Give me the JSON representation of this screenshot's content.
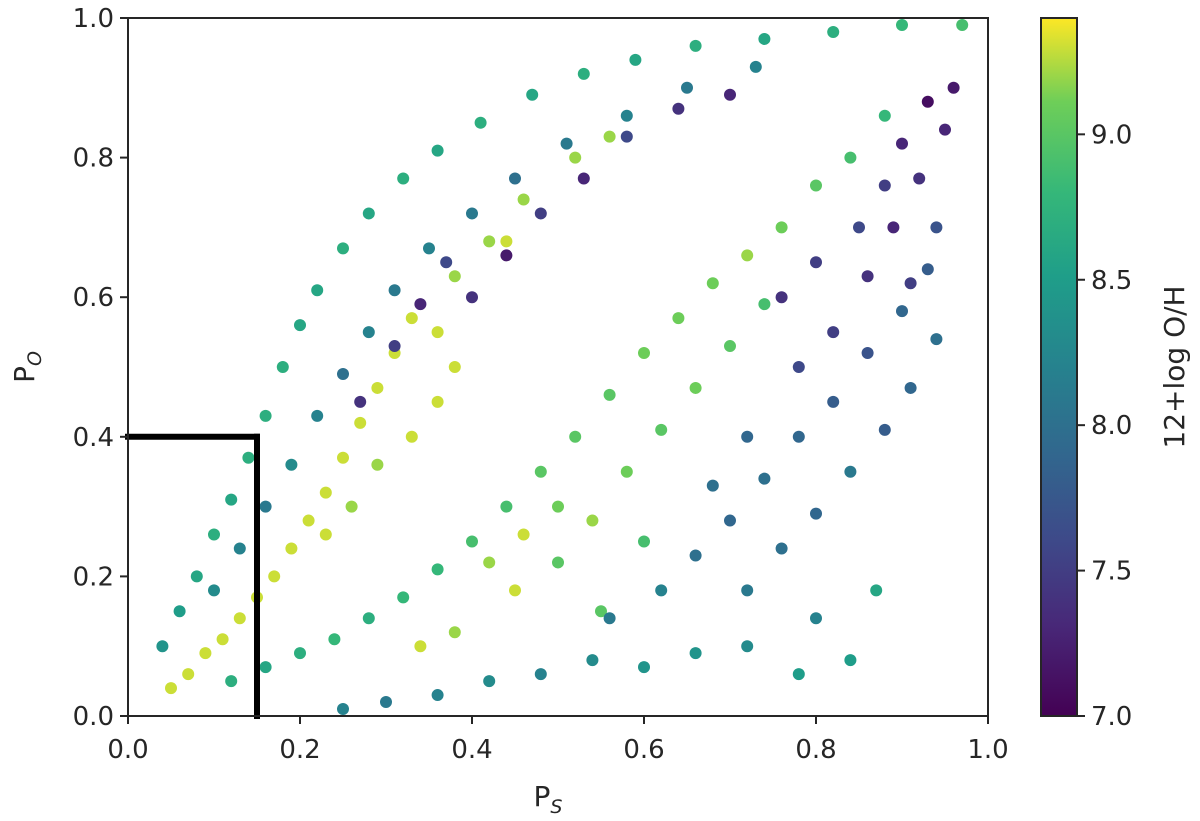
{
  "chart_data": {
    "type": "scatter",
    "title": "",
    "xlabel": "P",
    "xlabel_sub": "S",
    "ylabel": "P",
    "ylabel_sub": "O",
    "xlim": [
      0.0,
      1.0
    ],
    "ylim": [
      0.0,
      1.0
    ],
    "xticks": [
      "0.0",
      "0.2",
      "0.4",
      "0.6",
      "0.8",
      "1.0"
    ],
    "yticks": [
      "0.0",
      "0.2",
      "0.4",
      "0.6",
      "0.8",
      "1.0"
    ],
    "grid": false,
    "colorbar": {
      "label": "12+log O/H",
      "range": [
        7.0,
        9.4
      ],
      "ticks": [
        "7.0",
        "7.5",
        "8.0",
        "8.5",
        "9.0"
      ],
      "colormap": "viridis"
    },
    "threshold_lines": [
      {
        "orientation": "horizontal",
        "y": 0.4,
        "x_from": 0.0,
        "x_to": 0.15,
        "color": "#000000"
      },
      {
        "orientation": "vertical",
        "x": 0.15,
        "y_from": 0.0,
        "y_to": 0.4,
        "color": "#000000"
      }
    ],
    "points": [
      {
        "x": 0.05,
        "y": 0.04,
        "c": 9.3
      },
      {
        "x": 0.07,
        "y": 0.06,
        "c": 9.3
      },
      {
        "x": 0.09,
        "y": 0.09,
        "c": 9.3
      },
      {
        "x": 0.11,
        "y": 0.11,
        "c": 9.3
      },
      {
        "x": 0.13,
        "y": 0.14,
        "c": 9.3
      },
      {
        "x": 0.15,
        "y": 0.17,
        "c": 9.3
      },
      {
        "x": 0.17,
        "y": 0.2,
        "c": 9.3
      },
      {
        "x": 0.19,
        "y": 0.24,
        "c": 9.3
      },
      {
        "x": 0.21,
        "y": 0.28,
        "c": 9.3
      },
      {
        "x": 0.23,
        "y": 0.32,
        "c": 9.3
      },
      {
        "x": 0.25,
        "y": 0.37,
        "c": 9.3
      },
      {
        "x": 0.27,
        "y": 0.42,
        "c": 9.3
      },
      {
        "x": 0.29,
        "y": 0.47,
        "c": 9.3
      },
      {
        "x": 0.31,
        "y": 0.52,
        "c": 9.3
      },
      {
        "x": 0.33,
        "y": 0.57,
        "c": 9.3
      },
      {
        "x": 0.38,
        "y": 0.63,
        "c": 9.2
      },
      {
        "x": 0.42,
        "y": 0.68,
        "c": 9.2
      },
      {
        "x": 0.46,
        "y": 0.74,
        "c": 9.2
      },
      {
        "x": 0.52,
        "y": 0.8,
        "c": 9.2
      },
      {
        "x": 0.56,
        "y": 0.83,
        "c": 9.2
      },
      {
        "x": 0.04,
        "y": 0.1,
        "c": 8.4
      },
      {
        "x": 0.06,
        "y": 0.15,
        "c": 8.5
      },
      {
        "x": 0.08,
        "y": 0.2,
        "c": 8.6
      },
      {
        "x": 0.1,
        "y": 0.26,
        "c": 8.7
      },
      {
        "x": 0.12,
        "y": 0.31,
        "c": 8.6
      },
      {
        "x": 0.14,
        "y": 0.37,
        "c": 8.7
      },
      {
        "x": 0.16,
        "y": 0.43,
        "c": 8.7
      },
      {
        "x": 0.18,
        "y": 0.5,
        "c": 8.7
      },
      {
        "x": 0.2,
        "y": 0.56,
        "c": 8.6
      },
      {
        "x": 0.22,
        "y": 0.61,
        "c": 8.6
      },
      {
        "x": 0.25,
        "y": 0.67,
        "c": 8.7
      },
      {
        "x": 0.28,
        "y": 0.72,
        "c": 8.6
      },
      {
        "x": 0.32,
        "y": 0.77,
        "c": 8.7
      },
      {
        "x": 0.36,
        "y": 0.81,
        "c": 8.6
      },
      {
        "x": 0.41,
        "y": 0.85,
        "c": 8.7
      },
      {
        "x": 0.47,
        "y": 0.89,
        "c": 8.6
      },
      {
        "x": 0.53,
        "y": 0.92,
        "c": 8.7
      },
      {
        "x": 0.59,
        "y": 0.94,
        "c": 8.6
      },
      {
        "x": 0.66,
        "y": 0.96,
        "c": 8.7
      },
      {
        "x": 0.74,
        "y": 0.97,
        "c": 8.6
      },
      {
        "x": 0.82,
        "y": 0.98,
        "c": 8.7
      },
      {
        "x": 0.9,
        "y": 0.99,
        "c": 8.8
      },
      {
        "x": 0.97,
        "y": 0.99,
        "c": 8.9
      },
      {
        "x": 0.1,
        "y": 0.18,
        "c": 8.3
      },
      {
        "x": 0.13,
        "y": 0.24,
        "c": 8.2
      },
      {
        "x": 0.16,
        "y": 0.3,
        "c": 8.1
      },
      {
        "x": 0.19,
        "y": 0.36,
        "c": 8.3
      },
      {
        "x": 0.22,
        "y": 0.43,
        "c": 8.2
      },
      {
        "x": 0.25,
        "y": 0.49,
        "c": 8.0
      },
      {
        "x": 0.28,
        "y": 0.55,
        "c": 8.2
      },
      {
        "x": 0.31,
        "y": 0.61,
        "c": 8.1
      },
      {
        "x": 0.35,
        "y": 0.67,
        "c": 8.2
      },
      {
        "x": 0.4,
        "y": 0.72,
        "c": 8.1
      },
      {
        "x": 0.45,
        "y": 0.77,
        "c": 8.0
      },
      {
        "x": 0.51,
        "y": 0.82,
        "c": 8.1
      },
      {
        "x": 0.58,
        "y": 0.86,
        "c": 8.2
      },
      {
        "x": 0.65,
        "y": 0.9,
        "c": 8.1
      },
      {
        "x": 0.73,
        "y": 0.93,
        "c": 8.2
      },
      {
        "x": 0.27,
        "y": 0.45,
        "c": 7.4
      },
      {
        "x": 0.31,
        "y": 0.53,
        "c": 7.5
      },
      {
        "x": 0.34,
        "y": 0.59,
        "c": 7.3
      },
      {
        "x": 0.37,
        "y": 0.65,
        "c": 7.6
      },
      {
        "x": 0.4,
        "y": 0.6,
        "c": 7.4
      },
      {
        "x": 0.44,
        "y": 0.66,
        "c": 7.2
      },
      {
        "x": 0.48,
        "y": 0.72,
        "c": 7.5
      },
      {
        "x": 0.53,
        "y": 0.77,
        "c": 7.3
      },
      {
        "x": 0.58,
        "y": 0.83,
        "c": 7.6
      },
      {
        "x": 0.64,
        "y": 0.87,
        "c": 7.4
      },
      {
        "x": 0.7,
        "y": 0.89,
        "c": 7.3
      },
      {
        "x": 0.36,
        "y": 0.45,
        "c": 9.3
      },
      {
        "x": 0.38,
        "y": 0.5,
        "c": 9.3
      },
      {
        "x": 0.33,
        "y": 0.4,
        "c": 9.3
      },
      {
        "x": 0.36,
        "y": 0.55,
        "c": 9.3
      },
      {
        "x": 0.44,
        "y": 0.68,
        "c": 9.3
      },
      {
        "x": 0.29,
        "y": 0.36,
        "c": 9.2
      },
      {
        "x": 0.26,
        "y": 0.3,
        "c": 9.2
      },
      {
        "x": 0.23,
        "y": 0.26,
        "c": 9.3
      },
      {
        "x": 0.12,
        "y": 0.05,
        "c": 8.7
      },
      {
        "x": 0.16,
        "y": 0.07,
        "c": 8.6
      },
      {
        "x": 0.2,
        "y": 0.09,
        "c": 8.7
      },
      {
        "x": 0.24,
        "y": 0.11,
        "c": 8.8
      },
      {
        "x": 0.28,
        "y": 0.14,
        "c": 8.7
      },
      {
        "x": 0.32,
        "y": 0.17,
        "c": 8.8
      },
      {
        "x": 0.36,
        "y": 0.21,
        "c": 8.8
      },
      {
        "x": 0.4,
        "y": 0.25,
        "c": 8.9
      },
      {
        "x": 0.44,
        "y": 0.3,
        "c": 8.9
      },
      {
        "x": 0.48,
        "y": 0.35,
        "c": 9.0
      },
      {
        "x": 0.52,
        "y": 0.4,
        "c": 9.0
      },
      {
        "x": 0.56,
        "y": 0.46,
        "c": 9.0
      },
      {
        "x": 0.6,
        "y": 0.52,
        "c": 9.1
      },
      {
        "x": 0.64,
        "y": 0.57,
        "c": 9.1
      },
      {
        "x": 0.68,
        "y": 0.62,
        "c": 9.1
      },
      {
        "x": 0.72,
        "y": 0.66,
        "c": 9.2
      },
      {
        "x": 0.76,
        "y": 0.7,
        "c": 9.1
      },
      {
        "x": 0.8,
        "y": 0.76,
        "c": 9.0
      },
      {
        "x": 0.84,
        "y": 0.8,
        "c": 8.9
      },
      {
        "x": 0.88,
        "y": 0.86,
        "c": 8.8
      },
      {
        "x": 0.42,
        "y": 0.22,
        "c": 9.2
      },
      {
        "x": 0.46,
        "y": 0.26,
        "c": 9.3
      },
      {
        "x": 0.5,
        "y": 0.3,
        "c": 9.1
      },
      {
        "x": 0.45,
        "y": 0.18,
        "c": 9.3
      },
      {
        "x": 0.5,
        "y": 0.22,
        "c": 9.0
      },
      {
        "x": 0.54,
        "y": 0.28,
        "c": 9.2
      },
      {
        "x": 0.58,
        "y": 0.35,
        "c": 9.1
      },
      {
        "x": 0.62,
        "y": 0.41,
        "c": 9.0
      },
      {
        "x": 0.66,
        "y": 0.47,
        "c": 9.1
      },
      {
        "x": 0.7,
        "y": 0.53,
        "c": 9.0
      },
      {
        "x": 0.74,
        "y": 0.59,
        "c": 8.9
      },
      {
        "x": 0.38,
        "y": 0.12,
        "c": 9.2
      },
      {
        "x": 0.34,
        "y": 0.1,
        "c": 9.3
      },
      {
        "x": 0.55,
        "y": 0.15,
        "c": 9.0
      },
      {
        "x": 0.6,
        "y": 0.25,
        "c": 8.9
      },
      {
        "x": 0.3,
        "y": 0.02,
        "c": 8.1
      },
      {
        "x": 0.36,
        "y": 0.03,
        "c": 8.2
      },
      {
        "x": 0.42,
        "y": 0.05,
        "c": 8.3
      },
      {
        "x": 0.48,
        "y": 0.06,
        "c": 8.2
      },
      {
        "x": 0.54,
        "y": 0.08,
        "c": 8.3
      },
      {
        "x": 0.6,
        "y": 0.07,
        "c": 8.4
      },
      {
        "x": 0.66,
        "y": 0.09,
        "c": 8.4
      },
      {
        "x": 0.72,
        "y": 0.1,
        "c": 8.3
      },
      {
        "x": 0.78,
        "y": 0.06,
        "c": 8.5
      },
      {
        "x": 0.84,
        "y": 0.08,
        "c": 8.5
      },
      {
        "x": 0.87,
        "y": 0.18,
        "c": 8.6
      },
      {
        "x": 0.25,
        "y": 0.01,
        "c": 8.2
      },
      {
        "x": 0.56,
        "y": 0.14,
        "c": 8.1
      },
      {
        "x": 0.62,
        "y": 0.18,
        "c": 8.2
      },
      {
        "x": 0.66,
        "y": 0.23,
        "c": 8.0
      },
      {
        "x": 0.7,
        "y": 0.28,
        "c": 7.9
      },
      {
        "x": 0.74,
        "y": 0.34,
        "c": 8.0
      },
      {
        "x": 0.78,
        "y": 0.4,
        "c": 7.9
      },
      {
        "x": 0.82,
        "y": 0.45,
        "c": 7.8
      },
      {
        "x": 0.86,
        "y": 0.52,
        "c": 7.7
      },
      {
        "x": 0.9,
        "y": 0.58,
        "c": 7.9
      },
      {
        "x": 0.93,
        "y": 0.64,
        "c": 7.8
      },
      {
        "x": 0.72,
        "y": 0.18,
        "c": 8.1
      },
      {
        "x": 0.76,
        "y": 0.24,
        "c": 8.0
      },
      {
        "x": 0.8,
        "y": 0.29,
        "c": 7.9
      },
      {
        "x": 0.84,
        "y": 0.35,
        "c": 8.1
      },
      {
        "x": 0.88,
        "y": 0.41,
        "c": 7.8
      },
      {
        "x": 0.91,
        "y": 0.47,
        "c": 7.9
      },
      {
        "x": 0.94,
        "y": 0.54,
        "c": 8.0
      },
      {
        "x": 0.8,
        "y": 0.14,
        "c": 8.2
      },
      {
        "x": 0.68,
        "y": 0.33,
        "c": 8.0
      },
      {
        "x": 0.72,
        "y": 0.4,
        "c": 7.9
      },
      {
        "x": 0.82,
        "y": 0.55,
        "c": 7.5
      },
      {
        "x": 0.86,
        "y": 0.63,
        "c": 7.4
      },
      {
        "x": 0.89,
        "y": 0.7,
        "c": 7.3
      },
      {
        "x": 0.92,
        "y": 0.77,
        "c": 7.4
      },
      {
        "x": 0.95,
        "y": 0.84,
        "c": 7.3
      },
      {
        "x": 0.96,
        "y": 0.9,
        "c": 7.2
      },
      {
        "x": 0.93,
        "y": 0.88,
        "c": 7.1
      },
      {
        "x": 0.9,
        "y": 0.82,
        "c": 7.3
      },
      {
        "x": 0.88,
        "y": 0.76,
        "c": 7.5
      },
      {
        "x": 0.85,
        "y": 0.7,
        "c": 7.6
      },
      {
        "x": 0.8,
        "y": 0.65,
        "c": 7.5
      },
      {
        "x": 0.76,
        "y": 0.6,
        "c": 7.4
      },
      {
        "x": 0.78,
        "y": 0.5,
        "c": 7.6
      },
      {
        "x": 0.94,
        "y": 0.7,
        "c": 7.7
      },
      {
        "x": 0.91,
        "y": 0.62,
        "c": 7.5
      }
    ]
  }
}
